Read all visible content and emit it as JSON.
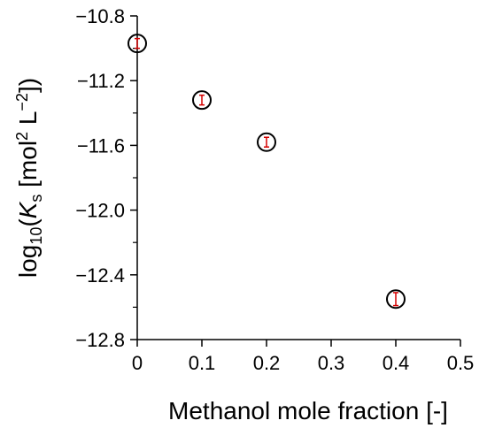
{
  "chart_data": {
    "type": "scatter",
    "title": "",
    "xlabel": "Methanol mole fraction [-]",
    "ylabel": {
      "log_prefix": "log",
      "log_base": "10",
      "open_paren": "(",
      "symbol": "K",
      "symbol_sub": "s",
      "units_open": " [mol",
      "units_exp1": "2",
      "units_mid": " L",
      "units_exp2": "−2",
      "units_close": "])"
    },
    "xlim": [
      0,
      0.5
    ],
    "ylim": [
      -12.8,
      -10.8
    ],
    "x_ticks": [
      0,
      0.1,
      0.2,
      0.3,
      0.4,
      0.5
    ],
    "x_tick_labels": [
      "0",
      "0.1",
      "0.2",
      "0.3",
      "0.4",
      "0.5"
    ],
    "y_ticks": [
      -10.8,
      -11.2,
      -11.6,
      -12.0,
      -12.4,
      -12.8
    ],
    "y_tick_labels": [
      "−10.8",
      "−11.2",
      "−11.6",
      "−12.0",
      "−12.4",
      "−12.8"
    ],
    "y_minor_ticks": [
      -11.0,
      -11.4,
      -11.8,
      -12.2,
      -12.6
    ],
    "grid": false,
    "series": [
      {
        "x": [
          0,
          0.1,
          0.2,
          0.4
        ],
        "y": [
          -10.97,
          -11.32,
          -11.58,
          -12.55
        ],
        "y_err": [
          0.03,
          0.03,
          0.03,
          0.04
        ],
        "marker": "open-circle",
        "marker_color": "#000000",
        "error_color": "#d40000"
      }
    ]
  }
}
